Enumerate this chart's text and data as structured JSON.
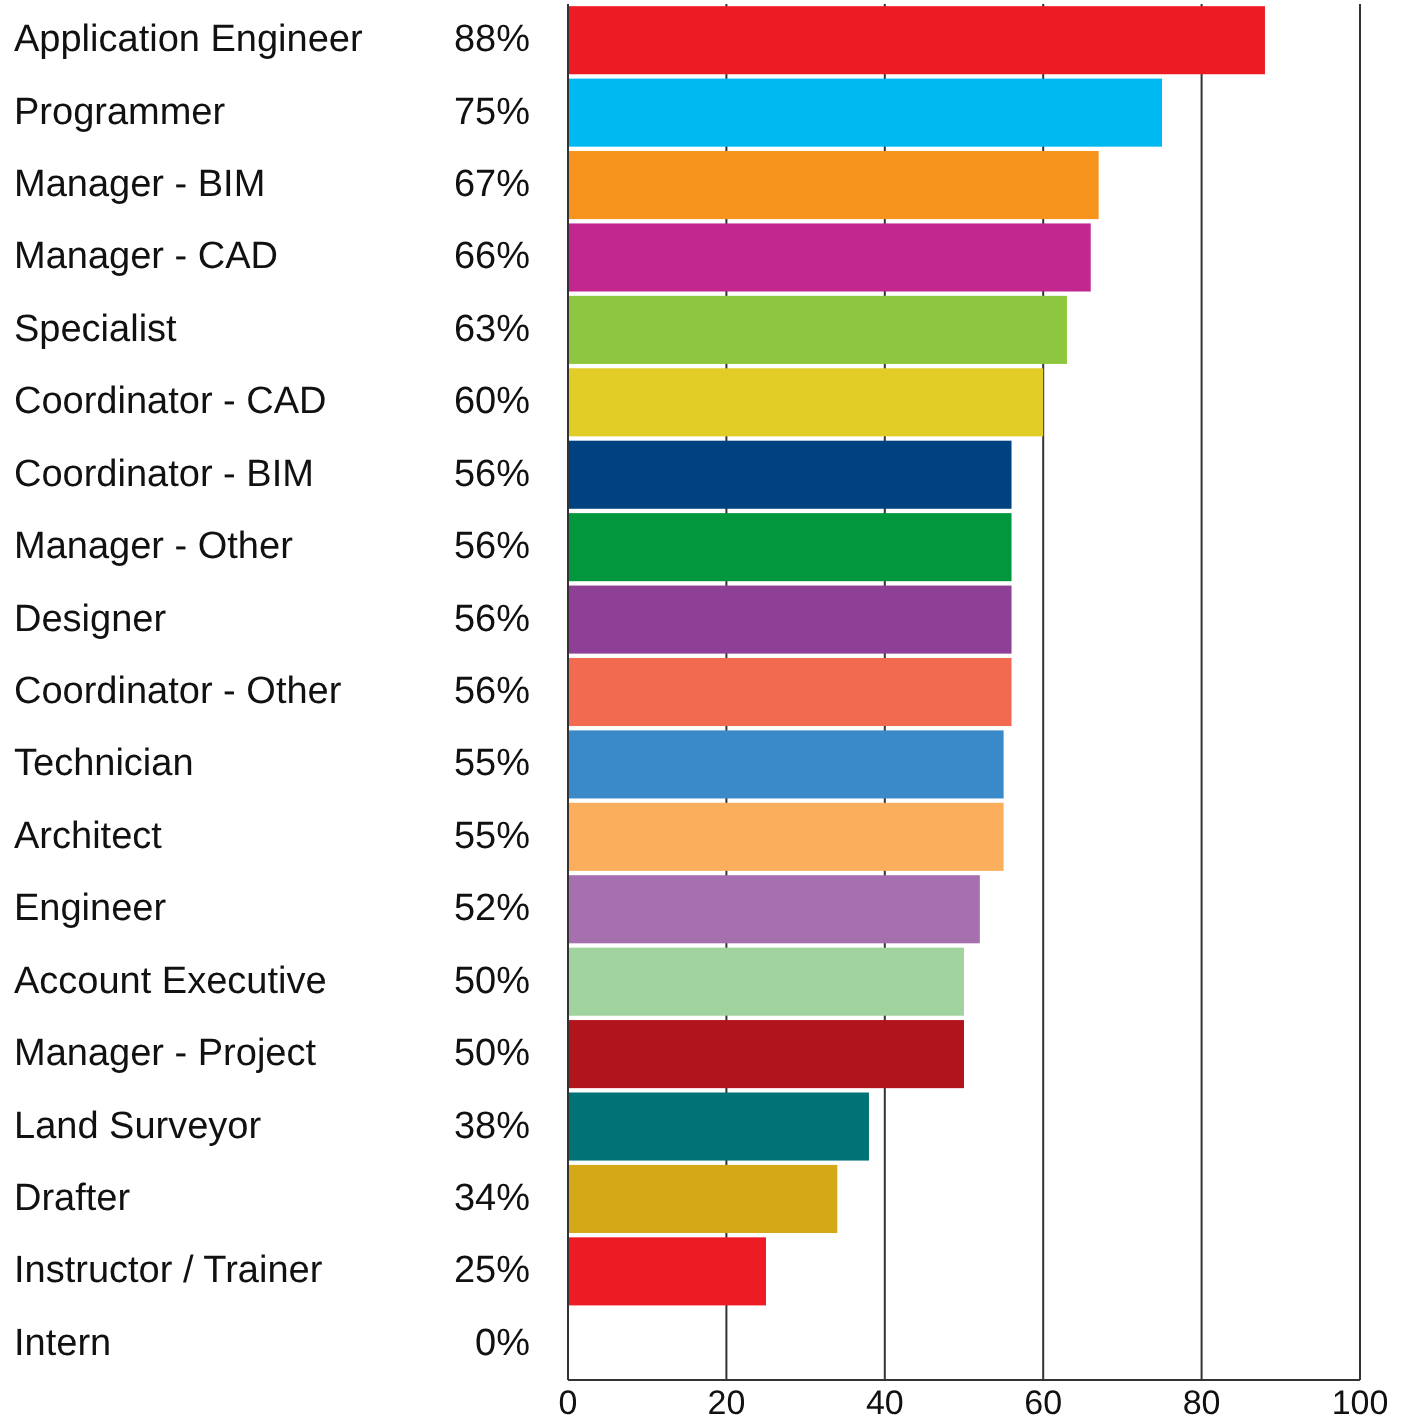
{
  "chart_data": {
    "type": "bar",
    "orientation": "horizontal",
    "categories": [
      "Application Engineer",
      "Programmer",
      "Manager - BIM",
      "Manager - CAD",
      "Specialist",
      "Coordinator - CAD",
      "Coordinator - BIM",
      "Manager - Other",
      "Designer",
      "Coordinator - Other",
      "Technician",
      "Architect",
      "Engineer",
      "Account Executive",
      "Manager - Project",
      "Land Surveyor",
      "Drafter",
      "Instructor / Trainer",
      "Intern"
    ],
    "values": [
      88,
      75,
      67,
      66,
      63,
      60,
      56,
      56,
      56,
      56,
      55,
      55,
      52,
      50,
      50,
      38,
      34,
      25,
      0
    ],
    "value_labels": [
      "88%",
      "75%",
      "67%",
      "66%",
      "63%",
      "60%",
      "56%",
      "56%",
      "56%",
      "56%",
      "55%",
      "55%",
      "52%",
      "50%",
      "50%",
      "38%",
      "34%",
      "25%",
      "0%"
    ],
    "colors": [
      "#ed1c24",
      "#00b9f1",
      "#f7941d",
      "#c1278f",
      "#8dc63f",
      "#e2cd27",
      "#00417f",
      "#00973d",
      "#8e3f96",
      "#f26a4f",
      "#3a89c9",
      "#fbae5b",
      "#a66fad",
      "#a0d39d",
      "#b1141b",
      "#007377",
      "#d4a817",
      "#ed1c24",
      "#cccccc"
    ],
    "xlim": [
      0,
      100
    ],
    "xticks": [
      0,
      20,
      40,
      60,
      80,
      100
    ],
    "grid": "x"
  }
}
